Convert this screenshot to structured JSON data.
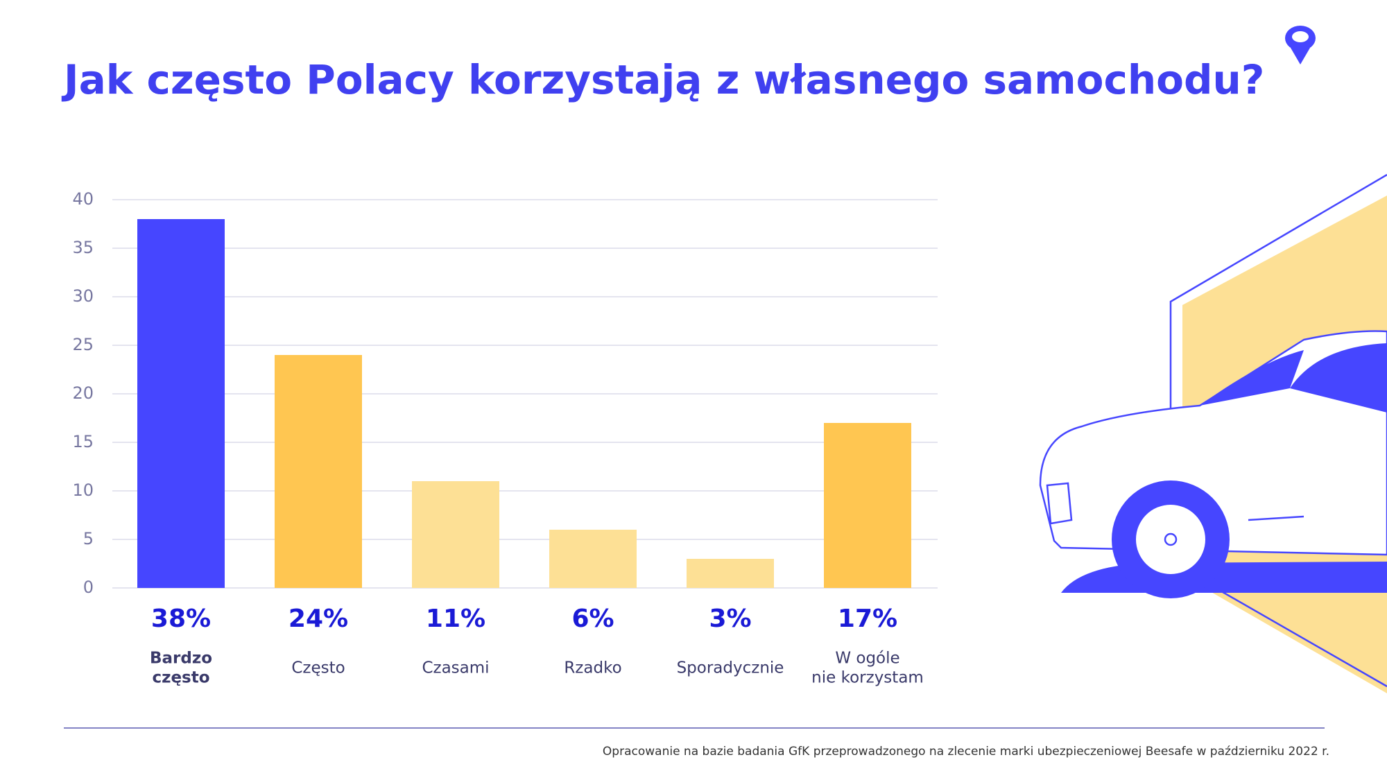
{
  "chart_data": {
    "type": "bar",
    "title": "Jak często Polacy korzystają z własnego samochodu?",
    "categories": [
      [
        "Bardzo",
        "często"
      ],
      [
        "Często"
      ],
      [
        "Czasami"
      ],
      [
        "Rzadko"
      ],
      [
        "Sporadycznie"
      ],
      [
        "W ogóle",
        "nie korzystam"
      ]
    ],
    "values": [
      38,
      24,
      11,
      6,
      3,
      17
    ],
    "value_labels": [
      "38%",
      "24%",
      "11%",
      "6%",
      "3%",
      "17%"
    ],
    "colors": [
      "#4646ff",
      "#ffc651",
      "#fde095",
      "#fde095",
      "#fde095",
      "#ffc651"
    ],
    "ylim": [
      0,
      40
    ],
    "yticks": [
      0,
      5,
      10,
      15,
      20,
      25,
      30,
      35,
      40
    ],
    "grid": true,
    "footnote": "Opracowanie na bazie badania GfK przeprowadzonego na zlecenie marki ubezpieczeniowej Beesafe w październiku 2022 r."
  }
}
